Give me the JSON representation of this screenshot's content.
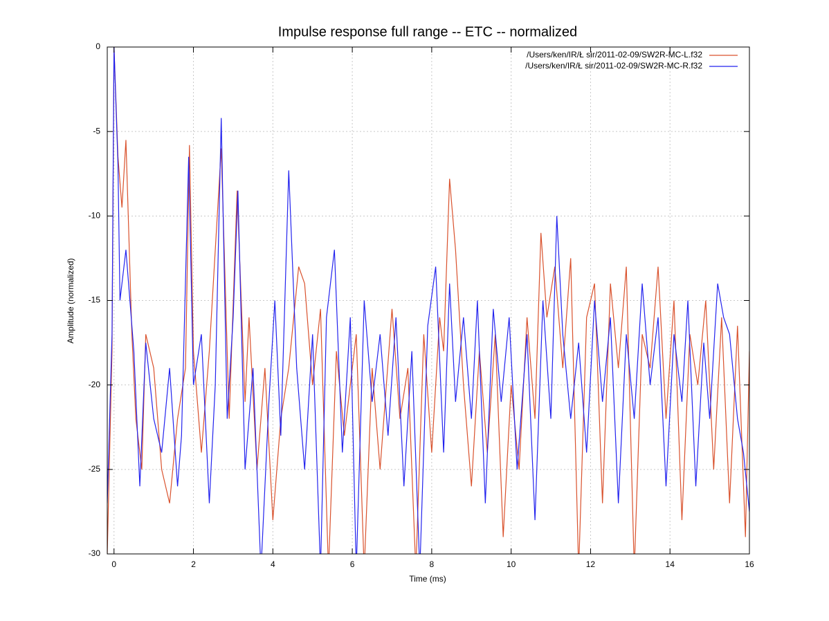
{
  "chart_data": {
    "type": "line",
    "title": "Impulse response full range -- ETC -- normalized",
    "x_label": "Time (ms)",
    "y_label": "Amplitude (normalized)",
    "xlim": [
      -0.17,
      16
    ],
    "ylim": [
      -30,
      0
    ],
    "xticks": [
      0,
      2,
      4,
      6,
      8,
      10,
      12,
      14,
      16
    ],
    "yticks": [
      0,
      -5,
      -10,
      -15,
      -20,
      -25,
      -30
    ],
    "grid": true,
    "legend": "top-right",
    "series": [
      {
        "name": "/Users/ken/IR/Ł sir/2011-02-09/SW2R-MC-L.f32",
        "color": "#d9512c",
        "x": [
          -0.17,
          -0.05,
          0,
          0.1,
          0.2,
          0.3,
          0.45,
          0.55,
          0.7,
          0.8,
          1.0,
          1.2,
          1.4,
          1.6,
          1.8,
          1.9,
          2.0,
          2.2,
          2.4,
          2.7,
          2.9,
          3.1,
          3.3,
          3.4,
          3.6,
          3.8,
          4.0,
          4.2,
          4.4,
          4.65,
          4.8,
          5.0,
          5.2,
          5.4,
          5.6,
          5.8,
          6.1,
          6.3,
          6.5,
          6.7,
          7.0,
          7.2,
          7.4,
          7.6,
          7.8,
          8.0,
          8.2,
          8.3,
          8.45,
          8.6,
          8.8,
          9.0,
          9.2,
          9.4,
          9.6,
          9.8,
          10.0,
          10.2,
          10.4,
          10.6,
          10.75,
          10.9,
          11.1,
          11.3,
          11.5,
          11.7,
          11.9,
          12.1,
          12.3,
          12.5,
          12.7,
          12.9,
          13.1,
          13.3,
          13.5,
          13.7,
          13.9,
          14.1,
          14.3,
          14.5,
          14.7,
          14.9,
          15.1,
          15.3,
          15.5,
          15.7,
          15.9,
          16
        ],
        "values": [
          -30,
          -18,
          0,
          -6.5,
          -9.5,
          -5.5,
          -17,
          -22,
          -25,
          -17,
          -19,
          -25,
          -27,
          -22,
          -19,
          -5.8,
          -18,
          -24,
          -18,
          -6,
          -22,
          -8.5,
          -21,
          -16,
          -25,
          -19,
          -28,
          -22,
          -19,
          -13,
          -14,
          -20,
          -15.5,
          -31,
          -18,
          -23,
          -17,
          -31,
          -19,
          -25,
          -15.5,
          -22,
          -19,
          -31,
          -17,
          -24,
          -16,
          -18,
          -7.8,
          -12,
          -20,
          -26,
          -18,
          -24,
          -17,
          -29,
          -20,
          -25,
          -16,
          -22,
          -11,
          -16,
          -13,
          -19,
          -12.5,
          -31,
          -16,
          -14,
          -27,
          -14,
          -19,
          -13,
          -31,
          -17,
          -19,
          -13,
          -22,
          -15,
          -28,
          -17,
          -20,
          -15,
          -25,
          -16,
          -27,
          -16.5,
          -29,
          -18
        ]
      },
      {
        "name": "/Users/ken/IR/Ł sir/2011-02-09/SW2R-MC-R.f32",
        "color": "#2222ee",
        "x": [
          -0.17,
          -0.05,
          0,
          0.1,
          0.15,
          0.3,
          0.5,
          0.65,
          0.8,
          1.0,
          1.2,
          1.4,
          1.6,
          1.7,
          1.88,
          2.0,
          2.2,
          2.4,
          2.55,
          2.7,
          2.85,
          3.0,
          3.12,
          3.3,
          3.5,
          3.7,
          3.9,
          4.05,
          4.2,
          4.4,
          4.6,
          4.8,
          5.0,
          5.2,
          5.35,
          5.55,
          5.75,
          5.95,
          6.1,
          6.3,
          6.5,
          6.7,
          6.9,
          7.1,
          7.3,
          7.5,
          7.7,
          7.9,
          8.1,
          8.3,
          8.45,
          8.6,
          8.8,
          9.0,
          9.15,
          9.35,
          9.55,
          9.75,
          9.95,
          10.15,
          10.4,
          10.6,
          10.8,
          11.0,
          11.15,
          11.3,
          11.5,
          11.7,
          11.9,
          12.1,
          12.3,
          12.5,
          12.7,
          12.9,
          13.1,
          13.3,
          13.5,
          13.7,
          13.9,
          14.1,
          14.3,
          14.45,
          14.65,
          14.85,
          15.0,
          15.2,
          15.35,
          15.5,
          15.7,
          15.85,
          16
        ],
        "values": [
          -27,
          -17,
          0,
          -7,
          -15,
          -12,
          -18,
          -26,
          -17.5,
          -22,
          -24,
          -19,
          -26,
          -23,
          -6.5,
          -20,
          -17,
          -27,
          -20,
          -4.2,
          -22,
          -16,
          -8.5,
          -25,
          -19,
          -31,
          -21,
          -15,
          -23,
          -7.3,
          -19,
          -25,
          -17,
          -31,
          -16,
          -12,
          -24,
          -16,
          -31,
          -15,
          -21,
          -17,
          -23,
          -16,
          -26,
          -18,
          -31,
          -16.5,
          -13,
          -24,
          -14,
          -21,
          -16,
          -22,
          -15,
          -27,
          -15.5,
          -21,
          -16,
          -25,
          -17,
          -28,
          -15,
          -22,
          -10,
          -17,
          -22,
          -17.5,
          -24,
          -15,
          -21,
          -16,
          -27,
          -17,
          -22,
          -14,
          -20,
          -16,
          -26,
          -17,
          -21,
          -15,
          -26,
          -17.5,
          -22,
          -14,
          -16,
          -17,
          -22,
          -24,
          -27.5
        ]
      }
    ]
  }
}
